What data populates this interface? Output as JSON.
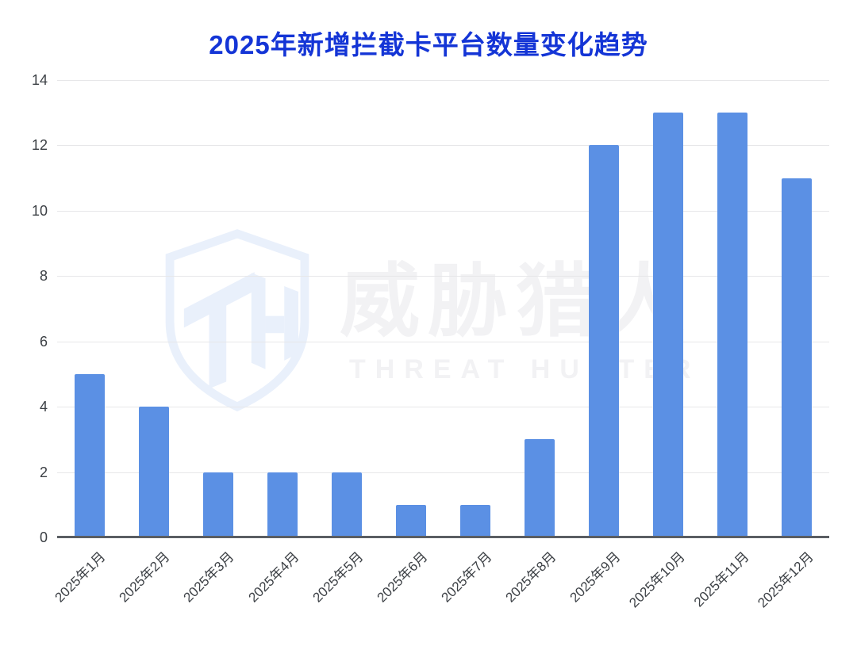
{
  "title": "2025年新增拦截卡平台数量变化趋势",
  "watermark": {
    "logo": "threat-hunter-shield",
    "text_cn": "威胁猎人",
    "text_en": "THREAT HUNTER"
  },
  "colors": {
    "bar": "#5B90E4",
    "title": "#1435D6",
    "axis_label": "#3C4045",
    "gridline": "#E7E7E9",
    "axis_line": "#5A5E63",
    "watermark_text": "#F2F2F4",
    "watermark_logo": "#E9F0FB"
  },
  "chart_data": {
    "type": "bar",
    "title": "2025年新增拦截卡平台数量变化趋势",
    "categories": [
      "2025年1月",
      "2025年2月",
      "2025年3月",
      "2025年4月",
      "2025年5月",
      "2025年6月",
      "2025年7月",
      "2025年8月",
      "2025年9月",
      "2025年10月",
      "2025年11月",
      "2025年12月"
    ],
    "values": [
      5,
      4,
      2,
      2,
      2,
      1,
      1,
      3,
      12,
      13,
      13,
      11
    ],
    "xlabel": "",
    "ylabel": "",
    "ylim": [
      0,
      14
    ],
    "yticks": [
      0,
      2,
      4,
      6,
      8,
      10,
      12,
      14
    ],
    "grid": true,
    "legend": false,
    "x_tick_rotation": -45,
    "bar_color": "#5B90E4"
  }
}
